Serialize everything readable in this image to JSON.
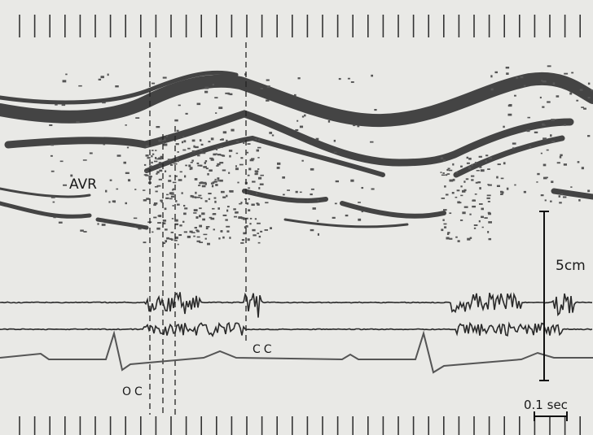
{
  "labels": {
    "avr": "AVR",
    "scale_depth": "5cm",
    "oc": "OC",
    "cc": "CC",
    "scale_time": "0.1 sec"
  }
}
